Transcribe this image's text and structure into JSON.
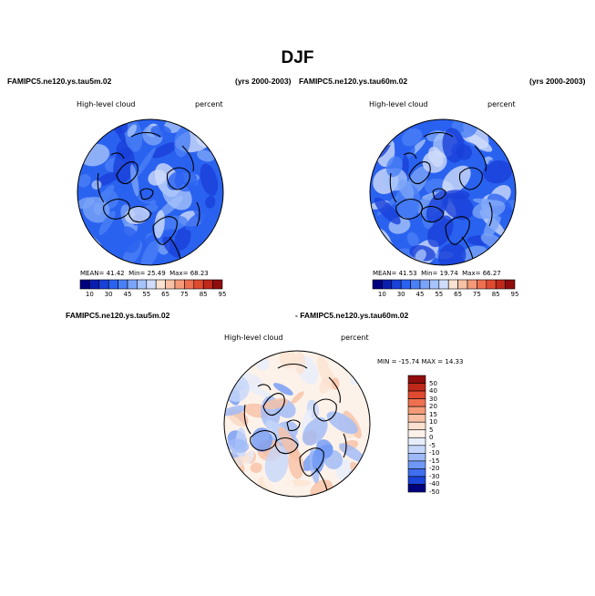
{
  "title": "DJF",
  "case_labels": {
    "left_title": "FAMIPC5.ne120.ys.tau5m.02",
    "left_years": "(yrs 2000-2003)",
    "right_title": "FAMIPC5.ne120.ys.tau60m.02",
    "right_years": "(yrs 2000-2003)",
    "diff_title_a": "FAMIPC5.ne120.ys.tau5m.02",
    "diff_title_b": "- FAMIPC5.ne120.ys.tau60m.02"
  },
  "colors": {
    "abs_scale": [
      "#00007f",
      "#0a1fb0",
      "#1940d8",
      "#2a62f0",
      "#4a80f5",
      "#7aa4f8",
      "#a6c3fa",
      "#d0dcfa",
      "#fbe2d0",
      "#f8c0a4",
      "#f49a78",
      "#ee7050",
      "#e04a30",
      "#c0281a",
      "#8f0d0d"
    ],
    "diff_scale": [
      "#8f0d0d",
      "#c0281a",
      "#e04a30",
      "#ee7050",
      "#f49a78",
      "#f8c0a4",
      "#fbe2d0",
      "#fdf2ea",
      "#e7eefb",
      "#c6d6fa",
      "#9db9f8",
      "#6f98f5",
      "#3f6ff0",
      "#1a45d8",
      "#00007f"
    ],
    "coast": "#000000"
  },
  "chart_data": [
    {
      "type": "heatmap",
      "projection": "polar stereographic (north pole)",
      "title": "FAMIPC5.ne120.ys.tau5m.02",
      "subtitle": "(yrs 2000-2003)",
      "variable": "High-level cloud",
      "units": "percent",
      "stats": {
        "MEAN": 41.42,
        "Min": 25.49,
        "Max": 68.23
      },
      "stats_text": {
        "mean_label": "MEAN=",
        "mean": "41.42",
        "min_label": "Min=",
        "min": "25.49",
        "max_label": "Max=",
        "max": "68.23"
      },
      "colorbar_levels": [
        10,
        30,
        45,
        55,
        65,
        75,
        85,
        95
      ],
      "colorbar_tick_text": [
        "10",
        "30",
        "45",
        "55",
        "65",
        "75",
        "85",
        "95"
      ],
      "grid": false
    },
    {
      "type": "heatmap",
      "projection": "polar stereographic (north pole)",
      "title": "FAMIPC5.ne120.ys.tau60m.02",
      "subtitle": "(yrs 2000-2003)",
      "variable": "High-level cloud",
      "units": "percent",
      "stats": {
        "MEAN": 41.53,
        "Min": 19.74,
        "Max": 66.27
      },
      "stats_text": {
        "mean_label": "MEAN=",
        "mean": "41.53",
        "min_label": "Min=",
        "min": "19.74",
        "max_label": "Max=",
        "max": "66.27"
      },
      "colorbar_levels": [
        10,
        30,
        45,
        55,
        65,
        75,
        85,
        95
      ],
      "colorbar_tick_text": [
        "10",
        "30",
        "45",
        "55",
        "65",
        "75",
        "85",
        "95"
      ],
      "grid": false
    },
    {
      "type": "heatmap",
      "projection": "polar stereographic (north pole)",
      "title": "FAMIPC5.ne120.ys.tau5m.02 - FAMIPC5.ne120.ys.tau60m.02",
      "variable": "High-level cloud",
      "units": "percent",
      "stats": {
        "MIN": -15.74,
        "MAX": 14.33
      },
      "stats_text": "MIN = -15.74  MAX =  14.33",
      "colorbar_levels": [
        50,
        40,
        30,
        20,
        15,
        10,
        5,
        0,
        -5,
        -10,
        -15,
        -20,
        -30,
        -40,
        -50
      ],
      "colorbar_tick_text": [
        "50",
        "40",
        "30",
        "20",
        "15",
        "10",
        "5",
        "0",
        "-5",
        "-10",
        "-15",
        "-20",
        "-30",
        "-40",
        "-50"
      ],
      "legend_position": "right",
      "grid": false
    }
  ]
}
